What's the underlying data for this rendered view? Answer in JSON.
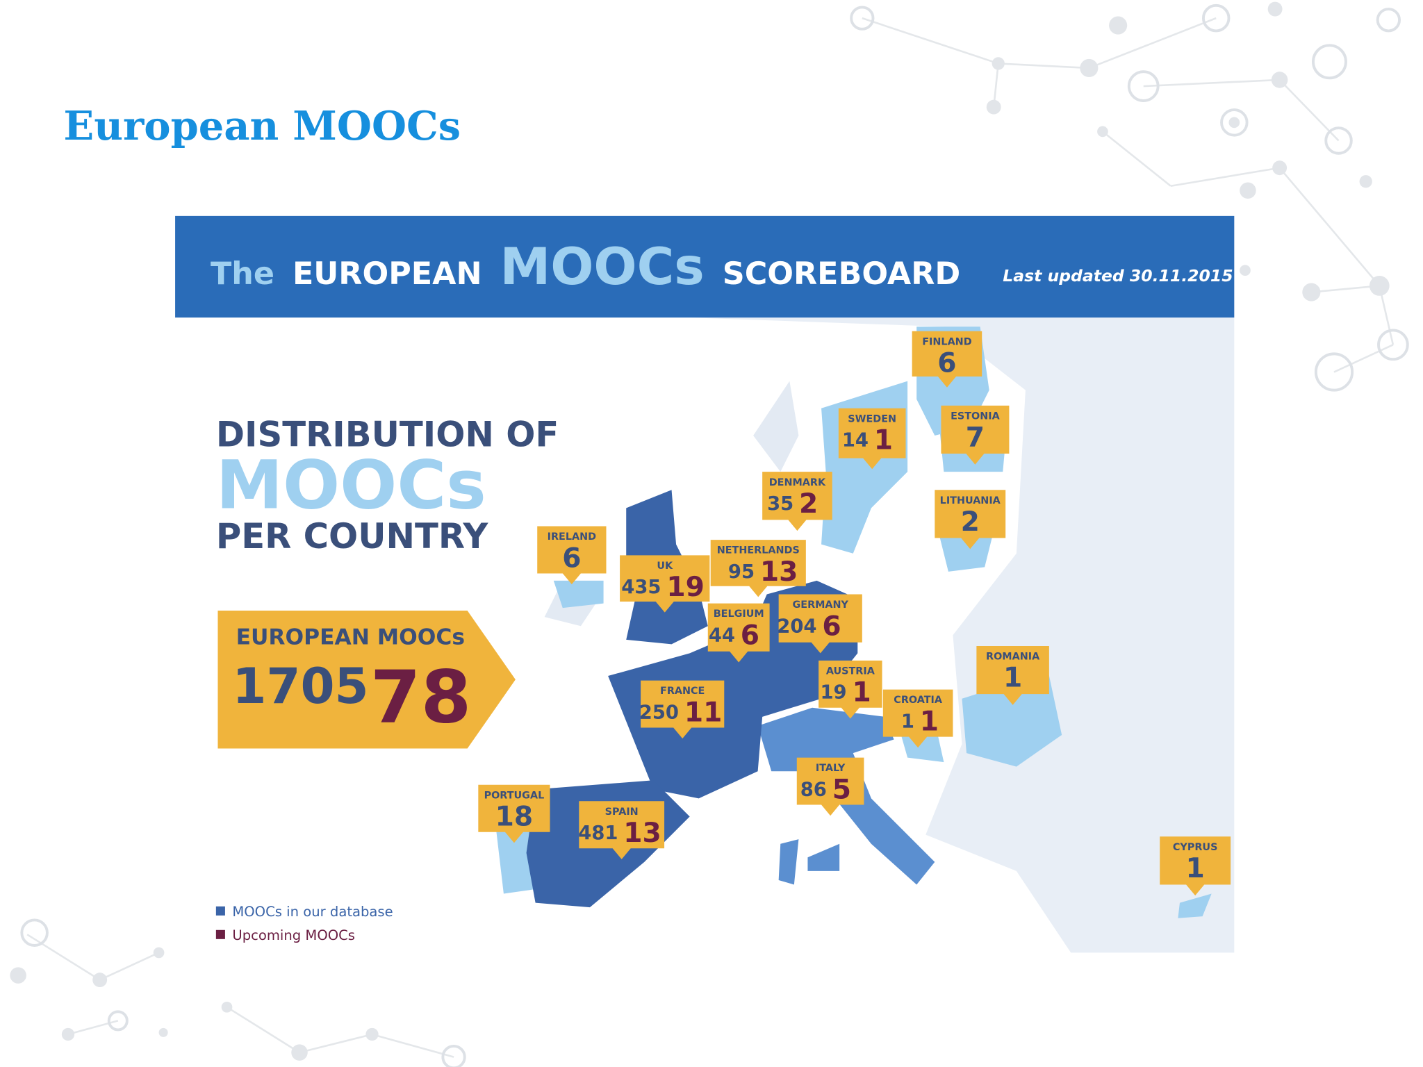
{
  "slide_title": "European MOOCs",
  "scoreboard": {
    "title_parts": [
      "The",
      "EUROPEAN",
      "MOOCs",
      "SCOREBOARD"
    ],
    "last_updated": "Last updated 30.11.2015"
  },
  "heading": [
    "DISTRIBUTION OF",
    "MOOCs",
    "PER COUNTRY"
  ],
  "total": {
    "label": "EUROPEAN MOOCs",
    "database": 1705,
    "upcoming": 78
  },
  "countries": [
    {
      "name": "FINLAND",
      "database": 6
    },
    {
      "name": "SWEDEN",
      "database": 14,
      "upcoming": 1
    },
    {
      "name": "ESTONIA",
      "database": 7
    },
    {
      "name": "DENMARK",
      "database": 35,
      "upcoming": 2
    },
    {
      "name": "LITHUANIA",
      "database": 2
    },
    {
      "name": "IRELAND",
      "database": 6
    },
    {
      "name": "UK",
      "database": 435,
      "upcoming": 19
    },
    {
      "name": "NETHERLANDS",
      "database": 95,
      "upcoming": 13
    },
    {
      "name": "BELGIUM",
      "database": 44,
      "upcoming": 6
    },
    {
      "name": "GERMANY",
      "database": 204,
      "upcoming": 6
    },
    {
      "name": "ROMANIA",
      "database": 1
    },
    {
      "name": "AUSTRIA",
      "database": 19,
      "upcoming": 1
    },
    {
      "name": "CROATIA",
      "database": 1,
      "upcoming": 1
    },
    {
      "name": "FRANCE",
      "database": 250,
      "upcoming": 11
    },
    {
      "name": "ITALY",
      "database": 86,
      "upcoming": 5
    },
    {
      "name": "PORTUGAL",
      "database": 18
    },
    {
      "name": "SPAIN",
      "database": 481,
      "upcoming": 13
    },
    {
      "name": "CYPRUS",
      "database": 1
    }
  ],
  "legend": [
    "MOOCs in our database",
    "Upcoming MOOCs"
  ]
}
